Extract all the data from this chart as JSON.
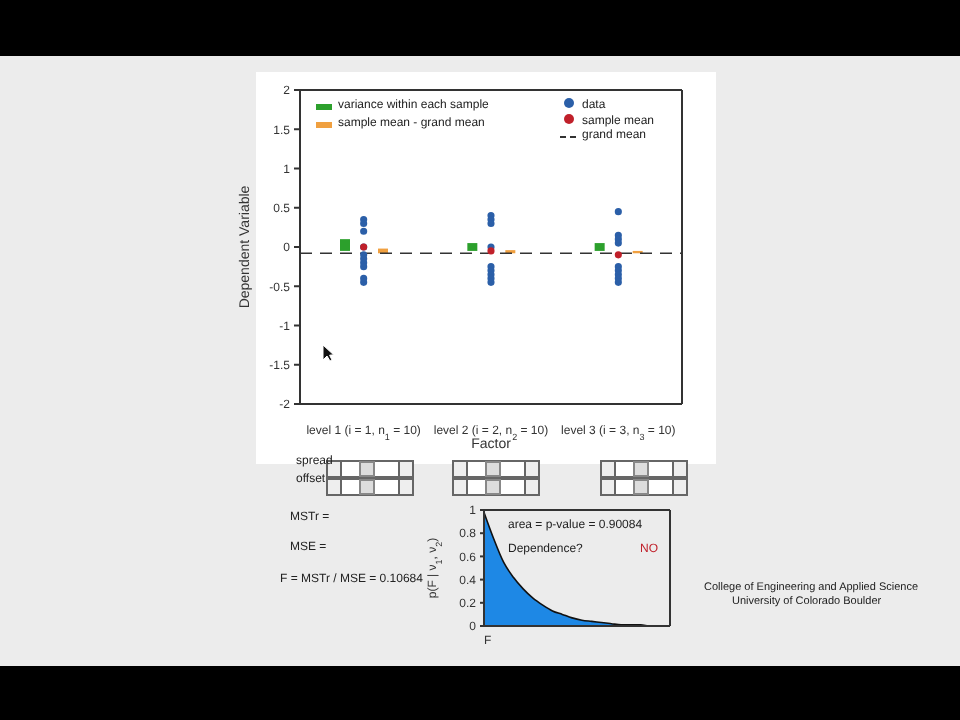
{
  "chart_data": [
    {
      "type": "scatter",
      "categories": [
        "level 1 (i = 1, n$_{1}$ = 10)",
        "level 2 (i = 2, n$_{2}$ = 10)",
        "level 3 (i = 3, n$_{3}$ = 10)"
      ],
      "xlabel": "Factor",
      "ylabel": "Dependent Variable",
      "ylim": [
        -2,
        2
      ],
      "yticks": [
        -2,
        -1.5,
        -1,
        -0.5,
        0,
        0.5,
        1,
        1.5,
        2
      ],
      "legend": "top",
      "marker": "circle",
      "series": [
        {
          "name": "variance within each sample",
          "type": "bar",
          "color": "#2ca02c",
          "base": [
            -0.05,
            -0.05,
            -0.05
          ],
          "values": [
            0.15,
            0.1,
            0.1
          ]
        },
        {
          "name": "sample mean - grand mean",
          "type": "bar",
          "color": "#f0a040",
          "base": [
            -0.08,
            -0.08,
            -0.08
          ],
          "values": [
            0.06,
            0.04,
            0.03
          ]
        },
        {
          "name": "data",
          "type": "scatter",
          "color": "#2b5fa8",
          "x": [
            "level 1 (i = 1, n$_{1}$ = 10)",
            "level 1 (i = 1, n$_{1}$ = 10)",
            "level 1 (i = 1, n$_{1}$ = 10)",
            "level 1 (i = 1, n$_{1}$ = 10)",
            "level 1 (i = 1, n$_{1}$ = 10)",
            "level 1 (i = 1, n$_{1}$ = 10)",
            "level 1 (i = 1, n$_{1}$ = 10)",
            "level 1 (i = 1, n$_{1}$ = 10)",
            "level 1 (i = 1, n$_{1}$ = 10)",
            "level 1 (i = 1, n$_{1}$ = 10)",
            "level 2 (i = 2, n$_{2}$ = 10)",
            "level 2 (i = 2, n$_{2}$ = 10)",
            "level 2 (i = 2, n$_{2}$ = 10)",
            "level 2 (i = 2, n$_{2}$ = 10)",
            "level 2 (i = 2, n$_{2}$ = 10)",
            "level 2 (i = 2, n$_{2}$ = 10)",
            "level 2 (i = 2, n$_{2}$ = 10)",
            "level 2 (i = 2, n$_{2}$ = 10)",
            "level 2 (i = 2, n$_{2}$ = 10)",
            "level 2 (i = 2, n$_{2}$ = 10)",
            "level 3 (i = 3, n$_{3}$ = 10)",
            "level 3 (i = 3, n$_{3}$ = 10)",
            "level 3 (i = 3, n$_{3}$ = 10)",
            "level 3 (i = 3, n$_{3}$ = 10)",
            "level 3 (i = 3, n$_{3}$ = 10)",
            "level 3 (i = 3, n$_{3}$ = 10)",
            "level 3 (i = 3, n$_{3}$ = 10)",
            "level 3 (i = 3, n$_{3}$ = 10)",
            "level 3 (i = 3, n$_{3}$ = 10)",
            "level 3 (i = 3, n$_{3}$ = 10)"
          ],
          "values": [
            0.35,
            0.3,
            0.2,
            0.0,
            -0.1,
            -0.15,
            -0.2,
            -0.25,
            -0.4,
            -0.45,
            0.4,
            0.35,
            0.3,
            0.0,
            null,
            -0.25,
            -0.3,
            -0.35,
            -0.4,
            -0.45,
            0.45,
            0.15,
            0.1,
            0.05,
            null,
            -0.25,
            -0.3,
            -0.35,
            -0.4,
            -0.45
          ]
        },
        {
          "name": "sample mean",
          "type": "scatter",
          "color": "#c0202a",
          "x": [
            "level 1 (i = 1, n$_{1}$ = 10)",
            "level 2 (i = 2, n$_{2}$ = 10)",
            "level 3 (i = 3, n$_{3}$ = 10)"
          ],
          "values": [
            0.0,
            -0.05,
            -0.1
          ]
        }
      ],
      "ref_lines": [
        {
          "axis": "y",
          "value": -0.08,
          "label": "grand mean",
          "line_style": "dashed",
          "color": "#333333"
        }
      ]
    },
    {
      "type": "area",
      "categories": [
        null,
        null,
        null,
        null,
        null,
        null,
        null,
        null,
        null,
        null,
        null,
        null,
        null,
        null,
        null,
        null,
        null,
        null,
        null,
        null
      ],
      "values": [
        0.98,
        0.75,
        0.55,
        0.42,
        0.32,
        0.24,
        0.18,
        0.13,
        0.1,
        0.07,
        0.05,
        0.04,
        0.03,
        0.02,
        0.01,
        0.01,
        0.01,
        0,
        0,
        0
      ],
      "color": "#1e88e5",
      "ylim": [
        0,
        1
      ],
      "yticks": [
        0,
        0.2,
        0.4,
        0.6,
        0.8,
        1
      ],
      "xlabel": "F",
      "ylabel": "p(F | ν$_{1}$, ν$_{2}$)",
      "tick_labels": "y",
      "annotations": [
        "area = p-value = 0.90084",
        "Dependence?",
        "NO"
      ]
    },
    {
      "type": "other",
      "annotations": [
        "spread",
        "offset",
        "MSTr =",
        "MSE =",
        "F = MSTr / MSE = 0.10684",
        "College of Engineering and Applied Science",
        "University of Colorado Boulder"
      ]
    }
  ]
}
